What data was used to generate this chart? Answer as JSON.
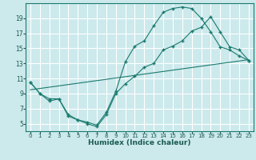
{
  "xlabel": "Humidex (Indice chaleur)",
  "bg_color": "#cce9ec",
  "grid_color": "#ffffff",
  "line_color": "#1a7a6e",
  "xlim": [
    -0.5,
    23.5
  ],
  "ylim": [
    4,
    21
  ],
  "xticks": [
    0,
    1,
    2,
    3,
    4,
    5,
    6,
    7,
    8,
    9,
    10,
    11,
    12,
    13,
    14,
    15,
    16,
    17,
    18,
    19,
    20,
    21,
    22,
    23
  ],
  "yticks": [
    5,
    7,
    9,
    11,
    13,
    15,
    17,
    19
  ],
  "line1_x": [
    0,
    1,
    2,
    3,
    4,
    5,
    6,
    7,
    8,
    9,
    10,
    11,
    12,
    13,
    14,
    15,
    16,
    17,
    18,
    19,
    20,
    21,
    22,
    23
  ],
  "line1_y": [
    10.5,
    9.0,
    8.3,
    8.3,
    6.2,
    5.5,
    5.2,
    4.8,
    6.5,
    9.3,
    13.2,
    15.3,
    16.0,
    18.0,
    19.8,
    20.3,
    20.5,
    20.3,
    19.0,
    17.2,
    15.2,
    14.8,
    14.0,
    13.4
  ],
  "line2_x": [
    0,
    1,
    2,
    3,
    4,
    5,
    6,
    7,
    8,
    9,
    10,
    11,
    12,
    13,
    14,
    15,
    16,
    17,
    18,
    19,
    20,
    21,
    22,
    23
  ],
  "line2_y": [
    10.5,
    9.0,
    8.0,
    8.3,
    6.0,
    5.5,
    5.0,
    4.6,
    6.2,
    9.0,
    10.3,
    11.3,
    12.5,
    13.0,
    14.8,
    15.3,
    16.0,
    17.3,
    17.8,
    19.2,
    17.2,
    15.2,
    14.8,
    13.4
  ],
  "line3_x": [
    0,
    23
  ],
  "line3_y": [
    9.5,
    13.5
  ]
}
